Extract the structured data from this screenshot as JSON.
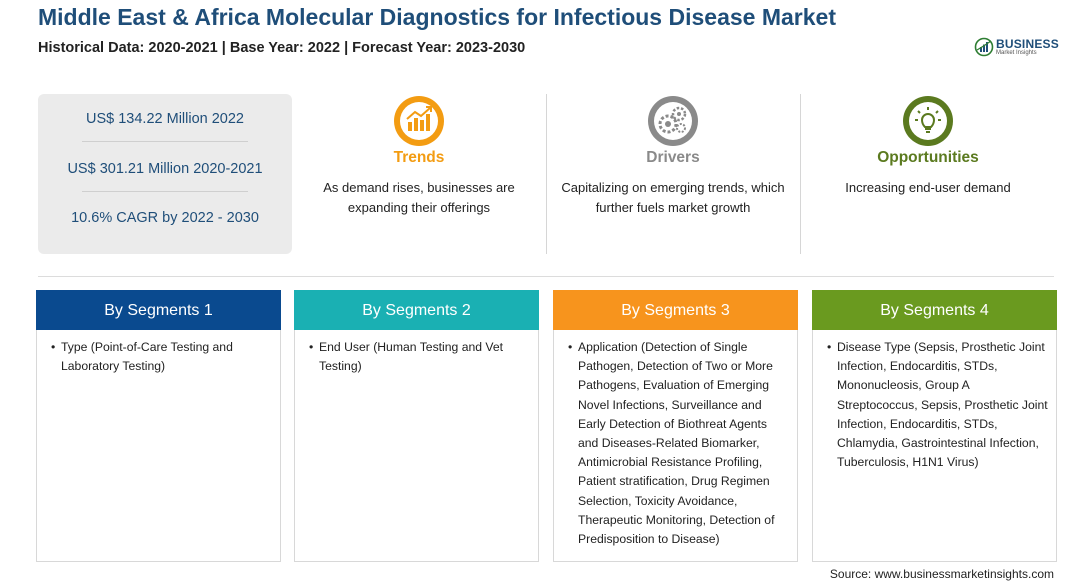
{
  "header": {
    "title": "Middle East & Africa Molecular Diagnostics for Infectious Disease Market",
    "subtitle": "Historical Data: 2020-2021 | Base Year: 2022 | Forecast Year: 2023-2030"
  },
  "logo": {
    "name": "BUSINESS",
    "tagline": "Market Insights"
  },
  "stats": [
    "US$ 134.22 Million 2022",
    "US$ 301.21 Million 2020-2021",
    "10.6% CAGR by 2022 - 2030"
  ],
  "insights": [
    {
      "title": "Trends",
      "text": "As demand rises, businesses are expanding their offerings",
      "color": "#f39c12",
      "icon": "trend-chart-icon"
    },
    {
      "title": "Drivers",
      "text": "Capitalizing on emerging trends, which further fuels market growth",
      "color": "#8a8a8a",
      "icon": "gears-icon"
    },
    {
      "title": "Opportunities",
      "text": "Increasing end-user demand",
      "color": "#5b7a1f",
      "icon": "lightbulb-icon"
    }
  ],
  "segments": [
    {
      "title": "By Segments 1",
      "color": "#0a4a8f",
      "bullet": "•",
      "text": "Type (Point-of-Care Testing and Laboratory Testing)"
    },
    {
      "title": "By Segments 2",
      "color": "#1ab0b3",
      "bullet": "•",
      "text": "End User (Human Testing and Vet Testing)"
    },
    {
      "title": "By Segments 3",
      "color": "#f7941d",
      "bullet": "•",
      "text": "Application (Detection of Single Pathogen, Detection of Two or More Pathogens, Evaluation of Emerging Novel Infections, Surveillance and Early Detection of Biothreat Agents and Diseases-Related Biomarker, Antimicrobial Resistance Profiling, Patient stratification, Drug Regimen Selection, Toxicity Avoidance, Therapeutic Monitoring, Detection of Predisposition to Disease)"
    },
    {
      "title": "By Segments 4",
      "color": "#6a9a1f",
      "bullet": "•",
      "text": "Disease Type (Sepsis, Prosthetic Joint Infection, Endocarditis, STDs, Mononucleosis, Group A Streptococcus, Sepsis, Prosthetic Joint Infection, Endocarditis, STDs, Chlamydia, Gastrointestinal Infection, Tuberculosis, H1N1 Virus)"
    }
  ],
  "footer": {
    "source": "Source: www.businessmarketinsights.com"
  }
}
